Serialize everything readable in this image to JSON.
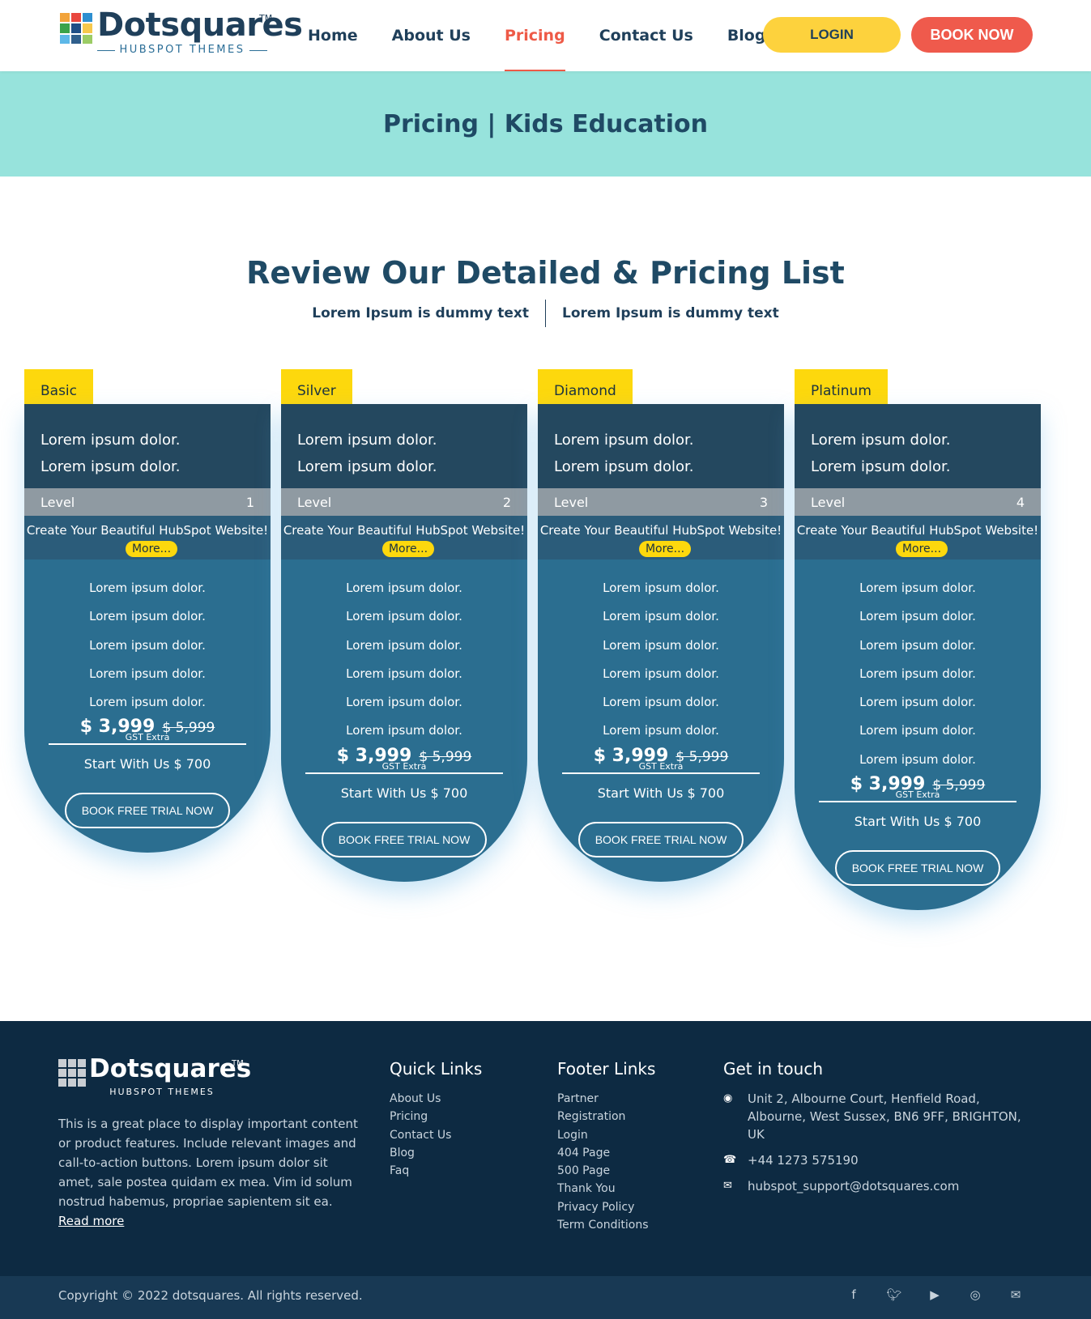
{
  "header": {
    "logo_word": "Dotsquares",
    "logo_tm": "TM",
    "logo_sub": "HUBSPOT THEMES",
    "nav": [
      "Home",
      "About Us",
      "Pricing",
      "Contact Us",
      "Blog"
    ],
    "active_nav": "Pricing",
    "login_label": "LOGIN",
    "book_label": "BOOK NOW"
  },
  "hero": {
    "title": "Pricing | Kids Education"
  },
  "section": {
    "title": "Review Our Detailed & Pricing List",
    "sub_left": "Lorem Ipsum is dummy text",
    "sub_right": "Lorem Ipsum is dummy text"
  },
  "cards": [
    {
      "tag": "Basic",
      "top_lines": [
        "Lorem ipsum dolor.",
        "Lorem ipsum dolor."
      ],
      "level_label": "Level",
      "level": "1",
      "cta_text": "Create Your Beautiful HubSpot Website!",
      "more_label": "More...",
      "features": [
        "Lorem ipsum dolor.",
        "Lorem ipsum dolor.",
        "Lorem ipsum dolor.",
        "Lorem ipsum dolor.",
        "Lorem ipsum dolor."
      ],
      "price": "$ 3,999",
      "old_price": "$ 5,999",
      "gst": "GST Extra",
      "start": "Start With Us $ 700",
      "trial_label": "BOOK FREE TRIAL NOW"
    },
    {
      "tag": "Silver",
      "top_lines": [
        "Lorem ipsum dolor.",
        "Lorem ipsum dolor."
      ],
      "level_label": "Level",
      "level": "2",
      "cta_text": "Create Your Beautiful HubSpot Website!",
      "more_label": "More...",
      "features": [
        "Lorem ipsum dolor.",
        "Lorem ipsum dolor.",
        "Lorem ipsum dolor.",
        "Lorem ipsum dolor.",
        "Lorem ipsum dolor.",
        "Lorem ipsum dolor."
      ],
      "price": "$ 3,999",
      "old_price": "$ 5,999",
      "gst": "GST Extra",
      "start": "Start With Us $ 700",
      "trial_label": "BOOK FREE TRIAL NOW"
    },
    {
      "tag": "Diamond",
      "top_lines": [
        "Lorem ipsum dolor.",
        "Lorem ipsum dolor."
      ],
      "level_label": "Level",
      "level": "3",
      "cta_text": "Create Your Beautiful HubSpot Website!",
      "more_label": "More...",
      "features": [
        "Lorem ipsum dolor.",
        "Lorem ipsum dolor.",
        "Lorem ipsum dolor.",
        "Lorem ipsum dolor.",
        "Lorem ipsum dolor.",
        "Lorem ipsum dolor."
      ],
      "price": "$ 3,999",
      "old_price": "$ 5,999",
      "gst": "GST Extra",
      "start": "Start With Us $ 700",
      "trial_label": "BOOK FREE TRIAL NOW"
    },
    {
      "tag": "Platinum",
      "top_lines": [
        "Lorem ipsum dolor.",
        "Lorem ipsum dolor."
      ],
      "level_label": "Level",
      "level": "4",
      "cta_text": "Create Your Beautiful HubSpot Website!",
      "more_label": "More...",
      "features": [
        "Lorem ipsum dolor.",
        "Lorem ipsum dolor.",
        "Lorem ipsum dolor.",
        "Lorem ipsum dolor.",
        "Lorem ipsum dolor.",
        "Lorem ipsum dolor.",
        "Lorem ipsum dolor."
      ],
      "price": "$ 3,999",
      "old_price": "$ 5,999",
      "gst": "GST Extra",
      "start": "Start With Us $ 700",
      "trial_label": "BOOK FREE TRIAL NOW"
    }
  ],
  "footer": {
    "logo_word": "Dotsquares",
    "logo_tm": "TM",
    "logo_sub": "HUBSPOT THEMES",
    "description": "This is a great place to display important content or product features. Include relevant images and call-to-action buttons. Lorem ipsum dolor sit amet, sale postea quidam ex mea. Vim id solum nostrud habemus, propriae sapientem sit ea.",
    "read_more": "Read more",
    "quick_title": "Quick Links",
    "quick_links": [
      "About Us",
      "Pricing",
      "Contact Us",
      "Blog",
      "Faq"
    ],
    "footer_title": "Footer Links",
    "footer_links": [
      "Partner",
      "Registration",
      "Login",
      "404 Page",
      "500 Page",
      "Thank You",
      "Privacy Policy",
      "Term Conditions"
    ],
    "contact_title": "Get in touch",
    "address": "Unit 2, Albourne Court, Henfield Road, Albourne, West Sussex, BN6 9FF, BRIGHTON, UK",
    "phone": "+44 1273 575190",
    "email": "hubspot_support@dotsquares.com",
    "copyright": "Copyright © 2022 dotsquares. All rights reserved.",
    "social_icons": [
      "facebook-icon",
      "twitter-icon",
      "youtube-icon",
      "instagram-icon",
      "mail-icon"
    ]
  },
  "colors": {
    "header_nav_text": "#1f3f5a",
    "active_nav": "#ee5a47",
    "login_bg": "#fdd23d",
    "book_bg": "#ef5a4c",
    "hero_bg": "#97e3dc",
    "card_tag": "#fdd80d",
    "card_top": "#24485f",
    "card_level": "#8f9aa2",
    "card_body": "#2b6e90",
    "footer_bg": "#0d2a42",
    "copyright_bg": "#183954"
  }
}
